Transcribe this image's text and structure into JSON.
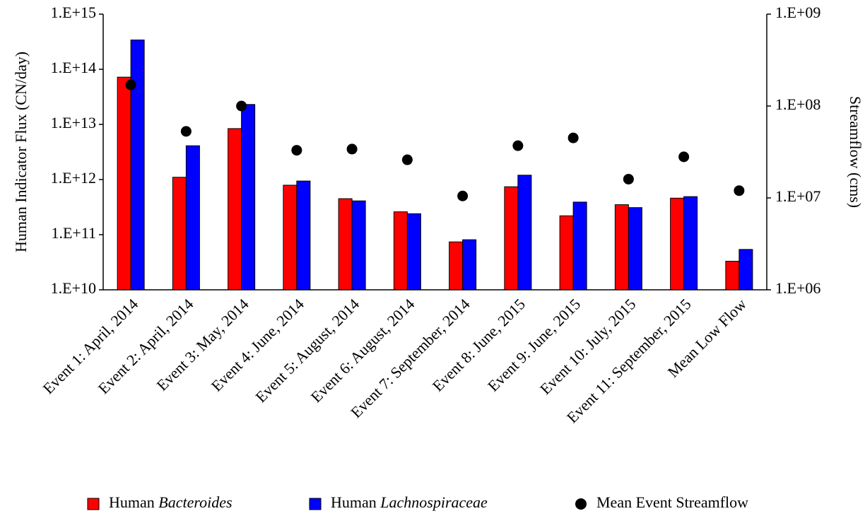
{
  "chart_data": {
    "type": "bar",
    "y_label": "Human Indicator Flux (CN/day)",
    "y2_label": "Streamflow (cms)",
    "yscale": "log",
    "y2scale": "log",
    "categories": [
      "Event 1: April, 2014",
      "Event 2: April, 2014",
      "Event 3: May, 2014",
      "Event 4: June, 2014",
      "Event 5: August, 2014",
      "Event 6: August, 2014",
      "Event 7: September, 2014",
      "Event 8: June, 2015",
      "Event 9: June, 2015",
      "Event 10: July, 2015",
      "Event 11: September, 2015",
      "Mean Low Flow"
    ],
    "series": [
      {
        "name": "Human Bacteroides",
        "color": "#ff0000",
        "italic_last_word": true,
        "type": "bar",
        "values": [
          72000000000000.0,
          1100000000000.0,
          8400000000000.0,
          790000000000.0,
          450000000000.0,
          260000000000.0,
          74000000000.0,
          740000000000.0,
          220000000000.0,
          350000000000.0,
          460000000000.0,
          33000000000.0
        ]
      },
      {
        "name": "Human Lachnospiraceae",
        "color": "#0000ff",
        "italic_last_word": true,
        "type": "bar",
        "values": [
          340000000000000.0,
          4100000000000.0,
          23000000000000.0,
          940000000000.0,
          410000000000.0,
          240000000000.0,
          81000000000.0,
          1200000000000.0,
          390000000000.0,
          310000000000.0,
          490000000000.0,
          54000000000.0
        ]
      },
      {
        "name": "Mean Event Streamflow",
        "color": "#000000",
        "italic_last_word": false,
        "type": "scatter",
        "axis": "y2",
        "values": [
          170000000.0,
          53000000.0,
          100000000.0,
          33000000.0,
          34000000.0,
          26000000.0,
          10500000.0,
          37000000.0,
          45000000.0,
          16000000.0,
          28000000.0,
          12000000.0
        ]
      }
    ],
    "ylim": [
      10000000000.0,
      1000000000000000.0
    ],
    "yticks": [
      {
        "value": 10000000000.0,
        "label": "1.E+10"
      },
      {
        "value": 100000000000.0,
        "label": "1.E+11"
      },
      {
        "value": 1000000000000.0,
        "label": "1.E+12"
      },
      {
        "value": 10000000000000.0,
        "label": "1.E+13"
      },
      {
        "value": 100000000000000.0,
        "label": "1.E+14"
      },
      {
        "value": 1000000000000000.0,
        "label": "1.E+15"
      }
    ],
    "y2lim": [
      1000000.0,
      1000000000.0
    ],
    "y2ticks": [
      {
        "value": 1000000.0,
        "label": "1.E+06"
      },
      {
        "value": 10000000.0,
        "label": "1.E+07"
      },
      {
        "value": 100000000.0,
        "label": "1.E+08"
      },
      {
        "value": 1000000000.0,
        "label": "1.E+09"
      }
    ],
    "legend": "bottom"
  }
}
